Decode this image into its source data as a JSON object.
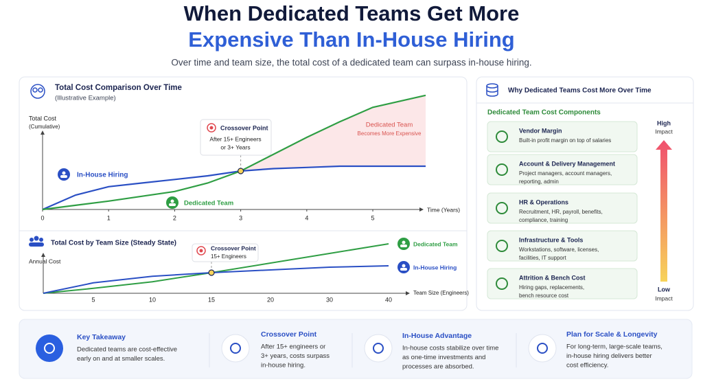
{
  "header": {
    "title": [
      "When Dedicated Teams Get More",
      "Expensive Than In-House Hiring"
    ],
    "subtitle": "Over time and team size, the total cost of a dedicated team can surpass in-house hiring."
  },
  "chart_data": [
    {
      "type": "line",
      "title": "Total Cost Comparison Over Time",
      "subtitle": "(Illustrative Example)",
      "y_label": [
        "Total Cost",
        "(Cumulative)"
      ],
      "x_label": "Time (Years)",
      "x": [
        0,
        0.5,
        1,
        1.5,
        2,
        2.5,
        3,
        3.5,
        4,
        4.5,
        5,
        5.8
      ],
      "series": [
        {
          "name": "In-House Hiring",
          "color": "#2a4fc4",
          "values": [
            0,
            12,
            19,
            22,
            25,
            28,
            32,
            34,
            35,
            36,
            36,
            36
          ]
        },
        {
          "name": "Dedicated Team",
          "color": "#2f9e44",
          "values": [
            0,
            3.5,
            7,
            11,
            15,
            22,
            32,
            46,
            60,
            73,
            85,
            95
          ]
        }
      ],
      "xlim": [
        0,
        5.8
      ],
      "xticks": [
        0,
        1,
        2,
        3,
        4,
        5
      ],
      "ylim": [
        0,
        100
      ],
      "crossover": {
        "title": "Crossover Point",
        "lines": [
          "After 15+ Engineers",
          "or 3+ Years"
        ]
      },
      "region_label": [
        "Dedicated Team",
        "Becomes More Expensive"
      ]
    },
    {
      "type": "line",
      "title": "Total Cost by Team Size (Steady State)",
      "y_label": [
        "Annual Cost"
      ],
      "x_label": "Team Size (Engineers)",
      "categories": [
        null,
        "5",
        "10",
        "15",
        "20",
        "30",
        "40"
      ],
      "series": [
        {
          "name": "Dedicated Team",
          "color": "#2f9e44",
          "values": [
            0,
            9,
            21,
            37.5,
            55,
            72.5,
            90
          ]
        },
        {
          "name": "In-House Hiring",
          "color": "#2a4fc4",
          "values": [
            0,
            19,
            31,
            37.5,
            42.5,
            47.5,
            50
          ]
        }
      ],
      "ylim": [
        0,
        100
      ],
      "crossover": {
        "title": "Crossover Point",
        "lines": [
          "15+ Engineers"
        ]
      }
    }
  ],
  "components": {
    "title": "Why Dedicated Teams Cost More Over Time",
    "subtitle": "Dedicated Team Cost Components",
    "items": [
      {
        "title": "Vendor Margin",
        "description": [
          "Built-in profit margin on top of salaries"
        ]
      },
      {
        "title": "Account & Delivery Management",
        "description": [
          "Project managers, account managers,",
          "reporting, admin"
        ]
      },
      {
        "title": "HR & Operations",
        "description": [
          "Recruitment, HR, payroll, benefits,",
          "compliance, training"
        ]
      },
      {
        "title": "Infrastructure & Tools",
        "description": [
          "Workstations, software, licenses,",
          "facilities, IT support"
        ]
      },
      {
        "title": "Attrition & Bench Cost",
        "description": [
          "Hiring gaps, replacements,",
          "bench resource cost"
        ]
      }
    ],
    "scale": {
      "high": [
        "High",
        "Impact"
      ],
      "low": [
        "Low",
        "Impact"
      ]
    }
  },
  "takeaways": [
    {
      "title": "Key Takeaway",
      "lines": [
        "Dedicated teams are cost-effective",
        "early on and at smaller scales."
      ]
    },
    {
      "title": "Crossover Point",
      "lines": [
        "After 15+ engineers or",
        "3+ years, costs surpass",
        "in-house hiring."
      ]
    },
    {
      "title": "In-House Advantage",
      "lines": [
        "In-house costs stabilize over time",
        "as one-time investments and",
        "processes are absorbed."
      ]
    },
    {
      "title": "Plan for Scale & Longevity",
      "lines": [
        "For long-term, large-scale teams,",
        "in-house hiring delivers better",
        "cost efficiency."
      ]
    }
  ]
}
